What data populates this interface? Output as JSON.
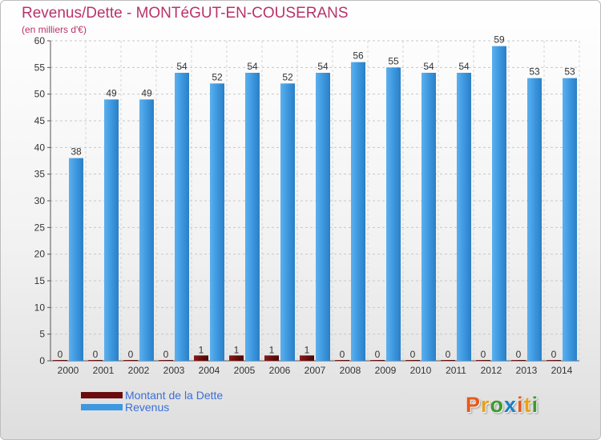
{
  "title": "Revenus/Dette - MONTéGUT-EN-COUSERANS",
  "subtitle": "(en milliers d'€)",
  "logo": {
    "text": "Proxiti",
    "colors": [
      "#e8591a",
      "#e8a21a",
      "#3c9a2e",
      "#1a7fc4",
      "#e8591a",
      "#e8a21a",
      "#3c9a2e"
    ]
  },
  "chart_data": {
    "type": "bar",
    "categories": [
      "2000",
      "2001",
      "2002",
      "2003",
      "2004",
      "2005",
      "2006",
      "2007",
      "2008",
      "2009",
      "2010",
      "2011",
      "2012",
      "2013",
      "2014"
    ],
    "series": [
      {
        "name": "Montant de la Dette",
        "color": "#6b0d0d",
        "values": [
          0,
          0,
          0,
          0,
          1,
          1,
          1,
          1,
          0,
          0,
          0,
          0,
          0,
          0,
          0
        ]
      },
      {
        "name": "Revenus",
        "color": "#3d98df",
        "values": [
          38,
          49,
          49,
          54,
          52,
          54,
          52,
          54,
          56,
          55,
          54,
          54,
          59,
          53,
          53
        ]
      }
    ],
    "ylim": [
      0,
      60
    ],
    "yticks": [
      0,
      5,
      10,
      15,
      20,
      25,
      30,
      35,
      40,
      45,
      50,
      55,
      60
    ],
    "grid": true,
    "legend": "bottom-left"
  }
}
